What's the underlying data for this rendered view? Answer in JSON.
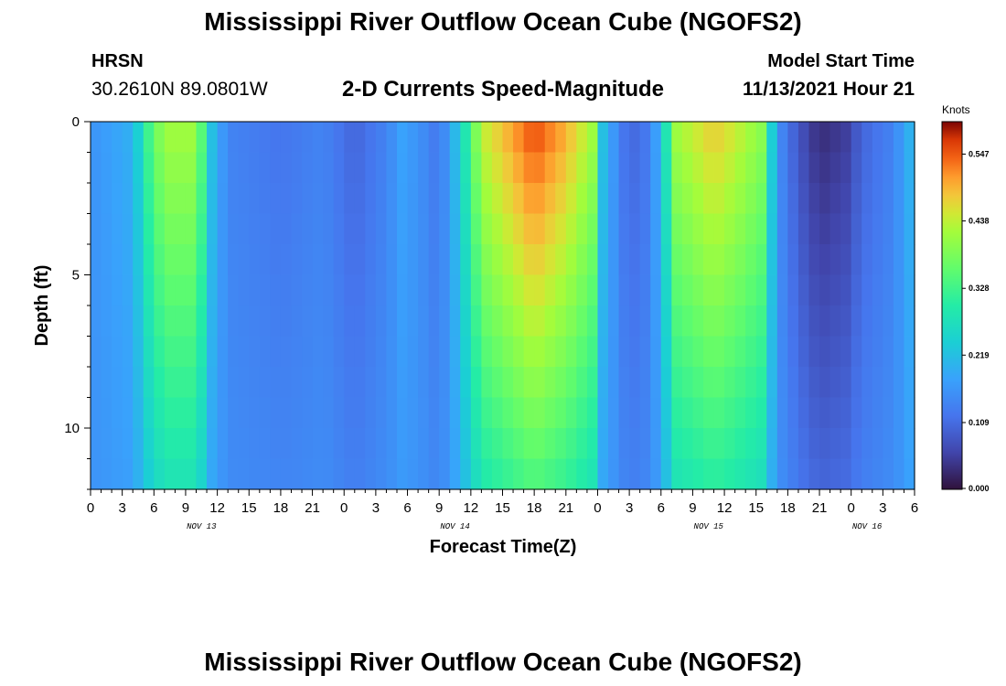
{
  "header": {
    "title": "Mississippi River Outflow Ocean Cube (NGOFS2)",
    "station": "HRSN",
    "coordinates": "30.2610N  89.0801W",
    "plot_title": "2-D Currents Speed-Magnitude",
    "model_start_label": "Model Start Time",
    "model_start_date": "11/13/2021 Hour 21"
  },
  "footer": {
    "title": "Mississippi River Outflow Ocean Cube (NGOFS2)"
  },
  "chart_data": {
    "type": "heatmap",
    "title": "2-D Currents Speed-Magnitude",
    "xlabel": "Forecast Time(Z)",
    "ylabel": "Depth (ft)",
    "x_tick_labels": [
      "0",
      "3",
      "6",
      "9",
      "12",
      "15",
      "18",
      "21",
      "0",
      "3",
      "6",
      "9",
      "12",
      "15",
      "18",
      "21",
      "0",
      "3",
      "6",
      "9",
      "12",
      "15",
      "18",
      "21",
      "0",
      "3",
      "6"
    ],
    "x_hours_range": [
      0,
      78
    ],
    "date_labels": [
      {
        "label": "NOV 13",
        "hour": 10.5
      },
      {
        "label": "NOV 14",
        "hour": 34.5
      },
      {
        "label": "NOV 15",
        "hour": 58.5
      },
      {
        "label": "NOV 16",
        "hour": 73.5
      }
    ],
    "y_ticks": [
      0,
      5,
      10
    ],
    "ylim": [
      0,
      12
    ],
    "colorbar": {
      "unit": "Knots",
      "ticks": [
        "0.000",
        "0.109",
        "0.219",
        "0.328",
        "0.438",
        "0.547"
      ],
      "min": 0,
      "max": 0.6
    },
    "time_profile": [
      [
        0,
        0.16
      ],
      [
        4,
        0.2
      ],
      [
        5.5,
        0.33
      ],
      [
        7,
        0.42
      ],
      [
        10,
        0.42
      ],
      [
        11.5,
        0.22
      ],
      [
        13,
        0.14
      ],
      [
        18,
        0.12
      ],
      [
        22,
        0.14
      ],
      [
        25,
        0.1
      ],
      [
        28,
        0.14
      ],
      [
        29.5,
        0.18
      ],
      [
        31,
        0.16
      ],
      [
        33,
        0.12
      ],
      [
        35,
        0.24
      ],
      [
        37,
        0.44
      ],
      [
        42,
        0.56
      ],
      [
        45,
        0.5
      ],
      [
        47.5,
        0.42
      ],
      [
        48.5,
        0.22
      ],
      [
        50,
        0.14
      ],
      [
        51,
        0.1
      ],
      [
        53,
        0.13
      ],
      [
        54,
        0.22
      ],
      [
        55.5,
        0.42
      ],
      [
        59,
        0.48
      ],
      [
        61,
        0.45
      ],
      [
        63.5,
        0.4
      ],
      [
        65,
        0.16
      ],
      [
        67,
        0.08
      ],
      [
        69,
        0.03
      ],
      [
        71.5,
        0.05
      ],
      [
        73,
        0.1
      ],
      [
        76,
        0.14
      ],
      [
        78,
        0.22
      ]
    ]
  }
}
